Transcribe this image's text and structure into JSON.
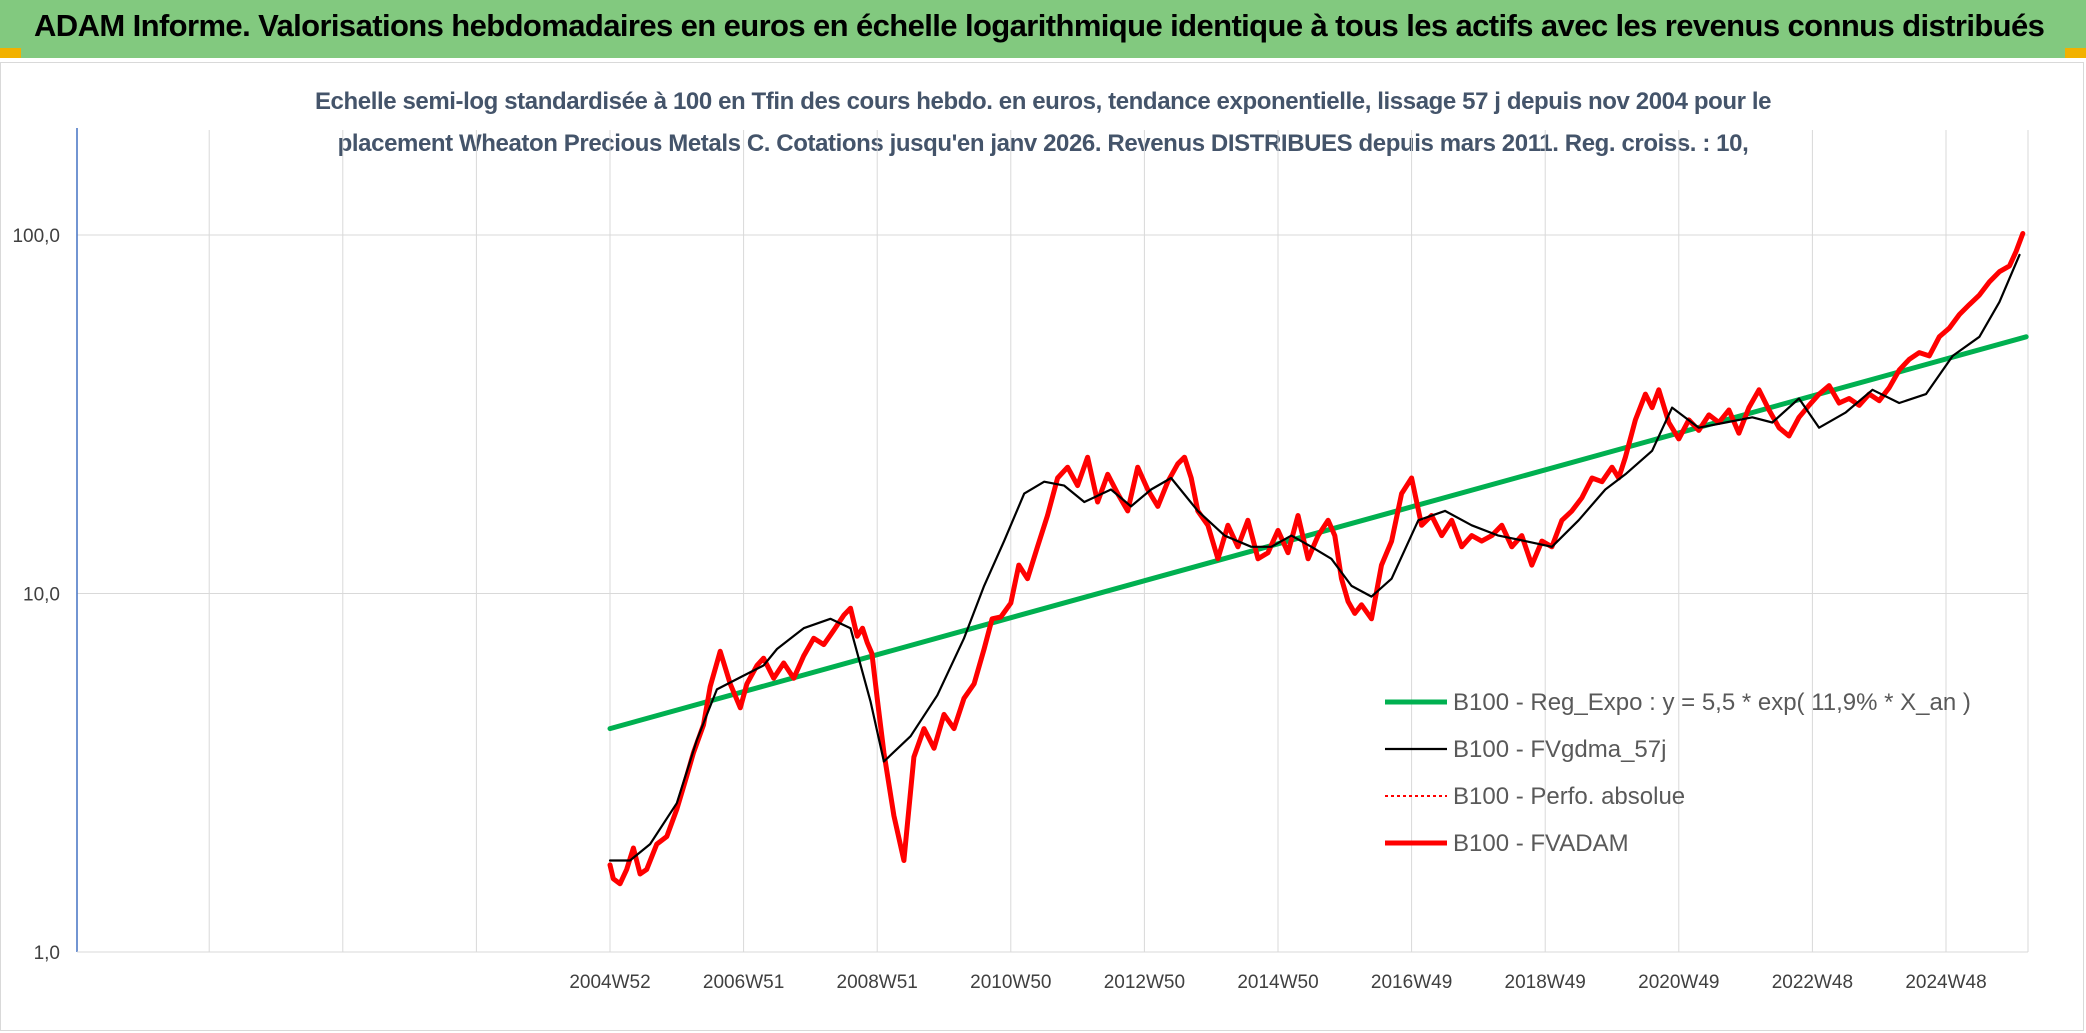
{
  "banner": {
    "title": "ADAM Informe. Valorisations hebdomadaires en euros en échelle logarithmique identique à tous les actifs avec les revenus connus distribués",
    "bg_color": "#82c97f",
    "corner_color": "#f2b100"
  },
  "chart_data": {
    "type": "line",
    "title": "Echelle semi-log standardisée à 100 en Tfin des cours hebdo. en euros, tendance exponentielle, lissage 57 j depuis nov 2004 pour le placement Wheaton Precious Metals C. Cotations jusqu'en janv 2026. Revenus DISTRIBUES depuis mars 2011. Reg. croiss. : 10,",
    "title_lines": [
      "Echelle semi-log standardisée à 100 en Tfin des cours hebdo. en euros, tendance exponentielle, lissage 57 j depuis nov 2004 pour le",
      "placement Wheaton Precious Metals C. Cotations jusqu'en janv 2026. Revenus DISTRIBUES depuis mars 2011. Reg. croiss. : 10,"
    ],
    "y_scale": "log",
    "ylim": [
      1,
      100
    ],
    "y_ticks": [
      1,
      10,
      100
    ],
    "y_tick_labels": [
      "1,0",
      "10,0",
      "100,0"
    ],
    "xlim": [
      1997,
      2026.2
    ],
    "x_ticks": [
      2005,
      2007,
      2009,
      2011,
      2013,
      2015,
      2017,
      2019,
      2021,
      2023,
      2025
    ],
    "x_tick_labels": [
      "2004W52",
      "2006W51",
      "2008W51",
      "2010W50",
      "2012W50",
      "2014W50",
      "2016W49",
      "2018W49",
      "2020W49",
      "2022W48",
      "2024W48"
    ],
    "grid": "vertical and horizontal",
    "legend_position": "right, lower half",
    "series": [
      {
        "name": "B100 - Reg_Expo : y = 5,5 * exp( 11,9% *  X_an )",
        "color": "#00b050",
        "style": "thick solid",
        "x": [
          2005.0,
          2026.2
        ],
        "y": [
          4.2,
          52
        ]
      },
      {
        "name": "B100 - FVgdma_57j",
        "color": "#000000",
        "style": "thin solid",
        "x": [
          2005.0,
          2005.3,
          2005.6,
          2006.0,
          2006.3,
          2006.6,
          2007.0,
          2007.3,
          2007.5,
          2007.9,
          2008.3,
          2008.6,
          2008.9,
          2009.1,
          2009.5,
          2009.9,
          2010.3,
          2010.6,
          2010.9,
          2011.2,
          2011.5,
          2011.8,
          2012.1,
          2012.5,
          2012.8,
          2013.1,
          2013.4,
          2013.8,
          2014.2,
          2014.6,
          2014.9,
          2015.2,
          2015.5,
          2015.8,
          2016.1,
          2016.4,
          2016.7,
          2017.1,
          2017.5,
          2017.9,
          2018.3,
          2018.7,
          2019.1,
          2019.5,
          2019.9,
          2020.2,
          2020.6,
          2020.9,
          2021.3,
          2021.7,
          2022.1,
          2022.4,
          2022.8,
          2023.1,
          2023.5,
          2023.9,
          2024.3,
          2024.7,
          2025.1,
          2025.5,
          2025.8,
          2026.1
        ],
        "y": [
          1.8,
          1.8,
          2.0,
          2.6,
          3.9,
          5.4,
          5.9,
          6.3,
          7.0,
          8.0,
          8.5,
          8.0,
          5.0,
          3.4,
          4.0,
          5.2,
          7.5,
          10.5,
          14.0,
          19.0,
          20.5,
          20.0,
          18.0,
          19.5,
          17.5,
          19.5,
          21.0,
          17.0,
          14.5,
          13.5,
          13.5,
          14.5,
          13.5,
          12.5,
          10.5,
          9.8,
          11.0,
          16.0,
          17.0,
          15.5,
          14.5,
          14.0,
          13.5,
          16.0,
          19.5,
          21.5,
          25.0,
          33.0,
          29.0,
          30.0,
          31.0,
          30.0,
          35.0,
          29.0,
          32.0,
          37.0,
          34.0,
          36.0,
          46.0,
          52.0,
          65.0,
          88.0
        ]
      },
      {
        "name": "B100 - Perfo. absolue",
        "color": "#ff0000",
        "style": "dotted",
        "x": [],
        "y": []
      },
      {
        "name": "B100 - FVADAM",
        "color": "#ff0000",
        "style": "thick solid",
        "x": [
          2005.0,
          2005.05,
          2005.15,
          2005.25,
          2005.35,
          2005.45,
          2005.55,
          2005.7,
          2005.85,
          2006.0,
          2006.15,
          2006.25,
          2006.4,
          2006.5,
          2006.65,
          2006.8,
          2006.95,
          2007.05,
          2007.2,
          2007.3,
          2007.45,
          2007.6,
          2007.75,
          2007.9,
          2008.05,
          2008.2,
          2008.35,
          2008.5,
          2008.6,
          2008.7,
          2008.78,
          2008.85,
          2008.92,
          2009.0,
          2009.1,
          2009.25,
          2009.4,
          2009.55,
          2009.7,
          2009.85,
          2010.0,
          2010.15,
          2010.3,
          2010.45,
          2010.6,
          2010.72,
          2010.85,
          2011.0,
          2011.12,
          2011.25,
          2011.4,
          2011.55,
          2011.7,
          2011.85,
          2012.0,
          2012.15,
          2012.3,
          2012.45,
          2012.6,
          2012.75,
          2012.9,
          2013.05,
          2013.2,
          2013.35,
          2013.5,
          2013.6,
          2013.7,
          2013.8,
          2013.95,
          2014.1,
          2014.25,
          2014.4,
          2014.55,
          2014.7,
          2014.85,
          2015.0,
          2015.15,
          2015.3,
          2015.45,
          2015.6,
          2015.75,
          2015.85,
          2015.95,
          2016.05,
          2016.15,
          2016.25,
          2016.4,
          2016.55,
          2016.7,
          2016.85,
          2017.0,
          2017.15,
          2017.3,
          2017.45,
          2017.6,
          2017.75,
          2017.9,
          2018.05,
          2018.2,
          2018.35,
          2018.5,
          2018.65,
          2018.8,
          2018.95,
          2019.1,
          2019.25,
          2019.4,
          2019.55,
          2019.7,
          2019.85,
          2020.0,
          2020.1,
          2020.2,
          2020.35,
          2020.5,
          2020.6,
          2020.7,
          2020.85,
          2021.0,
          2021.15,
          2021.3,
          2021.45,
          2021.6,
          2021.75,
          2021.9,
          2022.05,
          2022.2,
          2022.35,
          2022.5,
          2022.65,
          2022.8,
          2022.95,
          2023.1,
          2023.25,
          2023.4,
          2023.55,
          2023.7,
          2023.85,
          2024.0,
          2024.15,
          2024.3,
          2024.45,
          2024.6,
          2024.75,
          2024.9,
          2025.05,
          2025.2,
          2025.35,
          2025.5,
          2025.65,
          2025.8,
          2025.95,
          2026.05,
          2026.15
        ],
        "y": [
          1.75,
          1.6,
          1.55,
          1.7,
          1.95,
          1.65,
          1.7,
          2.0,
          2.1,
          2.5,
          3.1,
          3.6,
          4.3,
          5.5,
          6.9,
          5.6,
          4.8,
          5.6,
          6.3,
          6.6,
          5.8,
          6.4,
          5.8,
          6.7,
          7.5,
          7.2,
          7.9,
          8.7,
          9.1,
          7.6,
          8.0,
          7.3,
          6.8,
          5.1,
          3.6,
          2.4,
          1.8,
          3.5,
          4.2,
          3.7,
          4.6,
          4.2,
          5.1,
          5.6,
          7.0,
          8.5,
          8.6,
          9.4,
          12.0,
          11.0,
          13.5,
          16.5,
          21.0,
          22.5,
          20.0,
          24.0,
          18.0,
          21.5,
          19.0,
          17.0,
          22.5,
          19.5,
          17.5,
          20.5,
          23.0,
          24.0,
          21.0,
          17.0,
          15.5,
          12.5,
          15.5,
          13.5,
          16.0,
          12.5,
          13.0,
          15.0,
          13.0,
          16.5,
          12.5,
          14.5,
          16.0,
          14.5,
          11.0,
          9.5,
          8.8,
          9.3,
          8.5,
          12.0,
          14.0,
          19.0,
          21.0,
          15.5,
          16.5,
          14.5,
          16.0,
          13.5,
          14.5,
          14.0,
          14.5,
          15.5,
          13.5,
          14.5,
          12.0,
          14.0,
          13.5,
          16.0,
          17.0,
          18.5,
          21.0,
          20.5,
          22.5,
          21.0,
          24.0,
          30.5,
          36.0,
          33.0,
          37.0,
          30.0,
          27.0,
          30.5,
          28.5,
          31.5,
          30.0,
          32.5,
          28.0,
          33.0,
          37.0,
          32.5,
          29.0,
          27.5,
          31.0,
          33.5,
          36.0,
          38.0,
          34.0,
          35.0,
          33.5,
          36.0,
          34.5,
          37.5,
          42.0,
          45.0,
          47.0,
          46.0,
          52.0,
          55.0,
          60.0,
          64.0,
          68.0,
          74.0,
          79.0,
          82.0,
          90.0,
          101.0
        ]
      }
    ]
  }
}
